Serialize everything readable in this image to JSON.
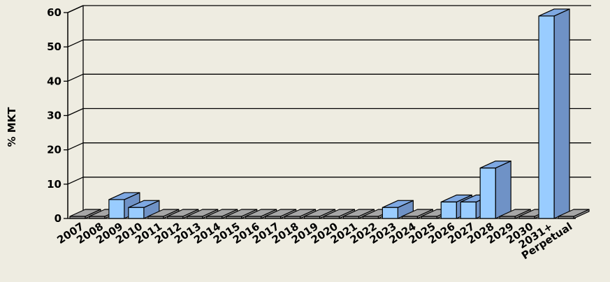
{
  "chart_data": {
    "type": "bar",
    "title": "",
    "xlabel": "",
    "ylabel": "% MKT",
    "ylim": [
      0,
      60
    ],
    "yticks": [
      0,
      10,
      20,
      30,
      40,
      50,
      60
    ],
    "grid": true,
    "legend": "none",
    "categories": [
      "2007",
      "2008",
      "2009",
      "2010",
      "2011",
      "2012",
      "2013",
      "2014",
      "2015",
      "2016",
      "2017",
      "2018",
      "2019",
      "2020",
      "2021",
      "2022",
      "2023",
      "2024",
      "2025",
      "2026",
      "2027",
      "2028",
      "2029",
      "2030",
      "2031+",
      "Perpetual"
    ],
    "values": [
      0,
      0,
      5.5,
      3.2,
      0,
      0,
      0,
      0,
      0,
      0,
      0,
      0,
      0,
      0,
      0,
      0,
      3.2,
      0,
      0,
      4.8,
      4.8,
      14.7,
      0,
      0,
      59,
      0
    ],
    "colors": {
      "bar_front": "#99ccff",
      "bar_side": "#6f92c6",
      "bar_top": "#7ea8e2",
      "zero_bar": "#8c8c8c",
      "zero_bar_top": "#a6a6a6",
      "background": "#eeece1"
    }
  }
}
